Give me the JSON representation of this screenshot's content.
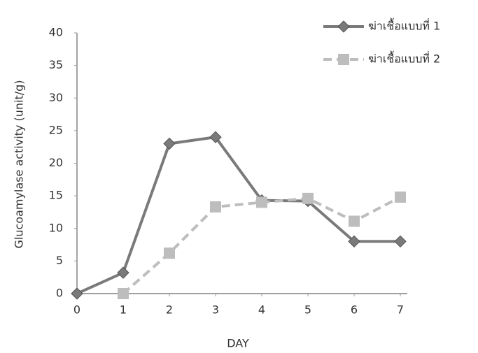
{
  "chart_data": {
    "type": "line",
    "x_label": "DAY",
    "y_label": "Glucoamylase activity (unit/g)",
    "x": [
      0,
      1,
      2,
      3,
      4,
      5,
      6,
      7
    ],
    "xlim": [
      0,
      7
    ],
    "xticks": [
      0,
      1,
      2,
      3,
      4,
      5,
      6,
      7
    ],
    "ylim": [
      0,
      40
    ],
    "yticks": [
      0,
      5,
      10,
      15,
      20,
      25,
      30,
      35,
      40
    ],
    "grid": false,
    "legend": "upper right",
    "series": [
      {
        "name": "ฆ่าเชื้อแบบที่ 1",
        "color": "#7a7a7a",
        "marker": "diamond",
        "line_style": "solid",
        "values": [
          0,
          3.2,
          23,
          24,
          14.3,
          14.2,
          8,
          8
        ]
      },
      {
        "name": "ฆ่าเชื้อแบบที่ 2",
        "color": "#bdbdbd",
        "marker": "square",
        "line_style": "dashed",
        "values": [
          null,
          0,
          6.2,
          13.3,
          14,
          14.6,
          11.1,
          14.8
        ]
      }
    ]
  }
}
